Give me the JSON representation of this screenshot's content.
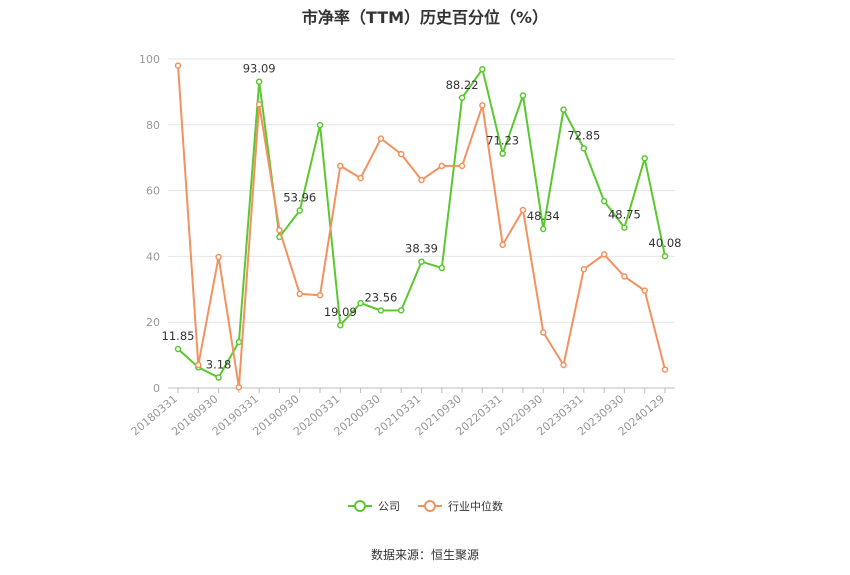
{
  "title": "市净率（TTM）历史百分位（%）",
  "source": "数据来源：恒生聚源",
  "chart_data": {
    "type": "line",
    "title": "市净率（TTM）历史百分位（%）",
    "ylim": [
      0,
      100
    ],
    "yticks": [
      0,
      20,
      40,
      60,
      80,
      100
    ],
    "grid": true,
    "legend_position": "bottom",
    "x": [
      "20180331",
      "20180630",
      "20180930",
      "20181231",
      "20190331",
      "20190630",
      "20190930",
      "20191231",
      "20200331",
      "20200630",
      "20200930",
      "20201231",
      "20210331",
      "20210630",
      "20210930",
      "20211231",
      "20220331",
      "20220630",
      "20220930",
      "20221231",
      "20230331",
      "20230630",
      "20230930",
      "20231231",
      "20240129"
    ],
    "x_tick_labels": [
      "20180331",
      "20180930",
      "20190331",
      "20190930",
      "20200331",
      "20200930",
      "20210331",
      "20210930",
      "20220331",
      "20220930",
      "20230331",
      "20230930",
      "20240129"
    ],
    "series": [
      {
        "name": "公司",
        "color": "#5ac82f",
        "values": [
          11.85,
          6.3,
          3.18,
          14.0,
          93.09,
          45.9,
          53.96,
          79.9,
          19.09,
          25.8,
          23.56,
          23.6,
          38.39,
          36.5,
          88.22,
          96.9,
          71.23,
          88.9,
          48.34,
          84.6,
          72.85,
          56.8,
          48.75,
          69.8,
          40.08
        ],
        "labels": {
          "0": "11.85",
          "2": "3.18",
          "4": "93.09",
          "6": "53.96",
          "8": "19.09",
          "10": "23.56",
          "12": "38.39",
          "14": "88.22",
          "16": "71.23",
          "18": "48.34",
          "20": "72.85",
          "22": "48.75",
          "24": "40.08"
        }
      },
      {
        "name": "行业中位数",
        "color": "#f2925f",
        "values": [
          98.0,
          7.0,
          39.8,
          0.2,
          86.2,
          48.0,
          28.6,
          28.2,
          67.5,
          63.8,
          75.8,
          71.1,
          63.2,
          67.5,
          67.5,
          85.9,
          43.5,
          54.1,
          16.9,
          7.0,
          36.1,
          40.6,
          33.9,
          29.6,
          5.6
        ]
      }
    ]
  }
}
